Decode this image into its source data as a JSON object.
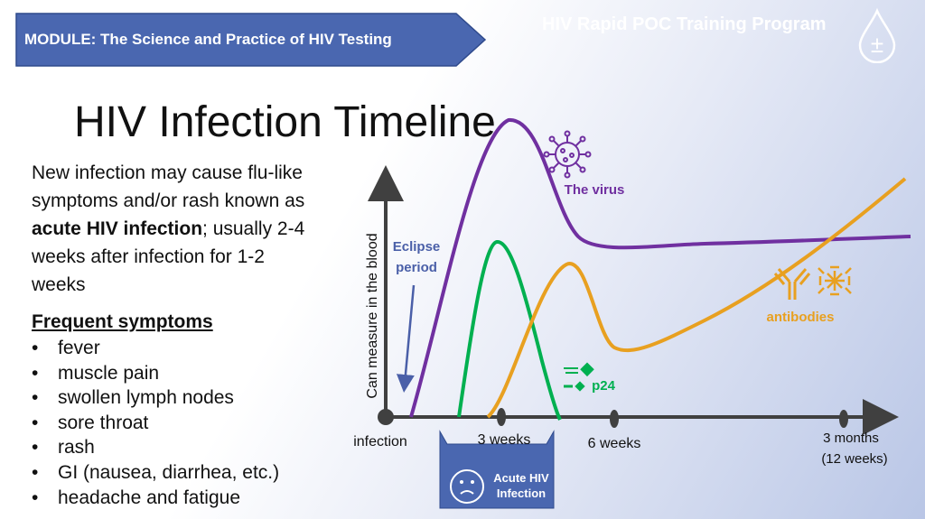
{
  "header": {
    "module": "MODULE: The Science and Practice of HIV Testing",
    "program": "HIV Rapid POC Training Program",
    "drop_icon_symbol": "±"
  },
  "title": "HIV Infection Timeline",
  "intro": {
    "part1": "New infection may cause flu-like symptoms and/or rash known as ",
    "bold": "acute HIV infection",
    "part2": "; usually 2-4 weeks after infection for 1-2 weeks"
  },
  "symptoms": {
    "heading": "Frequent symptoms",
    "items": [
      "fever",
      "muscle pain",
      "swollen lymph nodes",
      "sore throat",
      "rash",
      "GI (nausea, diarrhea, etc.)",
      "headache and fatigue"
    ]
  },
  "diagram": {
    "y_axis_label": "Can  measure in the blood",
    "eclipse_line1": "Eclipse",
    "eclipse_line2": "period",
    "virus_label": "The virus",
    "antibodies_label": "antibodies",
    "p24_label": "p24",
    "ticks": {
      "infection": "infection",
      "three_weeks": "3 weeks",
      "six_weeks": "6 weeks",
      "three_months_line1": "3 months",
      "three_months_line2": "(12 weeks)"
    },
    "acute_line1": "Acute HIV",
    "acute_line2": "Infection",
    "colors": {
      "virus": "#7030a0",
      "p24": "#00b050",
      "antibodies": "#e8a020",
      "axis": "#404040",
      "eclipse": "#4a5fa8",
      "banner": "#4a67b0"
    }
  }
}
